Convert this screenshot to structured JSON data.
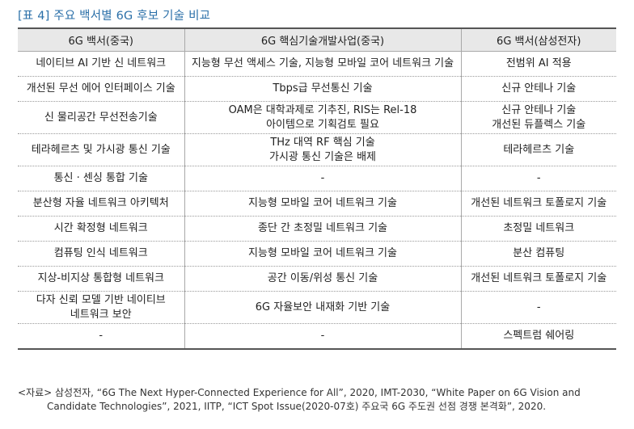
{
  "caption": "[표 4] 주요 백서별 6G 후보 기술 비교",
  "headers": [
    "6G 백서(중국)",
    "6G 핵심기술개발사업(중국)",
    "6G 백서(삼성전자)"
  ],
  "rows": [
    {
      "c1": [
        "네이티브 AI 기반 신 네트워크"
      ],
      "c2": [
        "지능형 무선 액세스 기술, 지능형 모바일 코어 네트워크 기술"
      ],
      "c3": [
        "전범위 AI 적용"
      ]
    },
    {
      "c1": [
        "개선된 무선 에어 인터페이스 기술"
      ],
      "c2": [
        "Tbps급 무선통신 기술"
      ],
      "c3": [
        "신규 안테나 기술"
      ]
    },
    {
      "c1": [
        "신 물리공간 무선전송기술"
      ],
      "c2": [
        "OAM은 대학과제로 기추진, RIS는 Rel-18",
        "아이템으로 기획검토 필요"
      ],
      "c3": [
        "신규 안테나 기술",
        "개선된 듀플렉스 기술"
      ]
    },
    {
      "c1": [
        "테라헤르츠 및 가시광 통신 기술"
      ],
      "c2": [
        "THz 대역 RF 핵심 기술",
        "가시광 통신 기술은 배제"
      ],
      "c3": [
        "테라헤르츠 기술"
      ]
    },
    {
      "c1": [
        "통신 · 센싱 통합 기술"
      ],
      "c2": [
        "-"
      ],
      "c3": [
        "-"
      ]
    },
    {
      "c1": [
        "분산형 자율 네트워크 아키텍처"
      ],
      "c2": [
        "지능형 모바일 코어 네트워크 기술"
      ],
      "c3": [
        "개선된 네트워크 토폴로지 기술"
      ]
    },
    {
      "c1": [
        "시간 확정형 네트워크"
      ],
      "c2": [
        "종단 간 초정밀 네트워크 기술"
      ],
      "c3": [
        "초정밀 네트워크"
      ]
    },
    {
      "c1": [
        "컴퓨팅 인식 네트워크"
      ],
      "c2": [
        "지능형 모바일 코어 네트워크 기술"
      ],
      "c3": [
        "분산 컴퓨팅"
      ]
    },
    {
      "c1": [
        "지상-비지상 통합형 네트워크"
      ],
      "c2": [
        "공간 이동/위성 통신 기술"
      ],
      "c3": [
        "개선된 네트워크 토폴로지 기술"
      ]
    },
    {
      "c1": [
        "다자 신뢰 모델 기반 네이티브",
        "네트워크 보안"
      ],
      "c2": [
        "6G 자율보안 내재화 기반 기술"
      ],
      "c3": [
        "-"
      ]
    },
    {
      "c1": [
        "-"
      ],
      "c2": [
        "-"
      ],
      "c3": [
        "스펙트럼 쉐어링"
      ]
    }
  ],
  "source": {
    "line1": "<자료> 삼성전자, “6G The Next Hyper-Connected Experience for All”, 2020, IMT-2030, “White Paper on 6G Vision and",
    "line2": "Candidate Technologies”, 2021, IITP, “ICT Spot Issue(2020-07호) 주요국 6G 주도권 선점 경쟁 본격화”, 2020."
  }
}
